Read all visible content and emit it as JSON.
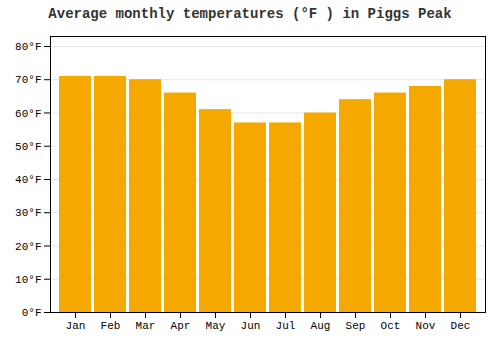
{
  "chart_data": {
    "type": "bar",
    "title": "Average monthly temperatures (°F ) in Piggs Peak",
    "categories": [
      "Jan",
      "Feb",
      "Mar",
      "Apr",
      "May",
      "Jun",
      "Jul",
      "Aug",
      "Sep",
      "Oct",
      "Nov",
      "Dec"
    ],
    "values": [
      71,
      71,
      70,
      66,
      61,
      57,
      57,
      60,
      64,
      66,
      68,
      70
    ],
    "color": "#F5A800",
    "ylim": [
      0,
      83
    ],
    "yticks": [
      {
        "value": 0,
        "label": "0°F"
      },
      {
        "value": 10,
        "label": "10°F"
      },
      {
        "value": 20,
        "label": "20°F"
      },
      {
        "value": 30,
        "label": "30°F"
      },
      {
        "value": 40,
        "label": "40°F"
      },
      {
        "value": 50,
        "label": "50°F"
      },
      {
        "value": 60,
        "label": "60°F"
      },
      {
        "value": 70,
        "label": "70°F"
      },
      {
        "value": 80,
        "label": "80°F"
      }
    ],
    "grid": true
  }
}
